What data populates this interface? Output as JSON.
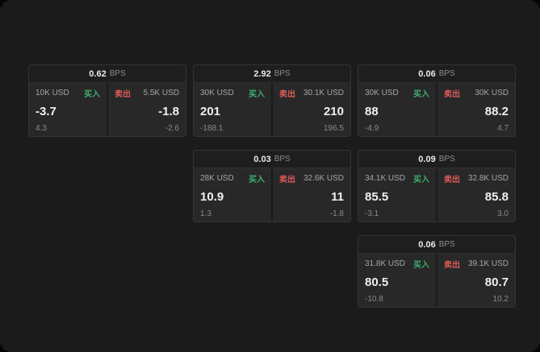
{
  "labels": {
    "buy": "买入",
    "sell": "卖出",
    "bps": "BPS"
  },
  "colors": {
    "buy": "#3fae6f",
    "sell": "#e05a5a",
    "window_bg": "#1b1b1b"
  },
  "cards": [
    {
      "bps": "0.62",
      "buy": {
        "amount": "10K USD",
        "price": "-3.7",
        "sub": "4.3"
      },
      "sell": {
        "amount": "5.5K USD",
        "price": "-1.8",
        "sub": "-2.6"
      }
    },
    {
      "bps": "2.92",
      "buy": {
        "amount": "30K USD",
        "price": "201",
        "sub": "-188.1"
      },
      "sell": {
        "amount": "30.1K USD",
        "price": "210",
        "sub": "196.5"
      }
    },
    {
      "bps": "0.06",
      "buy": {
        "amount": "30K USD",
        "price": "88",
        "sub": "-4.9"
      },
      "sell": {
        "amount": "30K USD",
        "price": "88.2",
        "sub": "4.7"
      }
    },
    {
      "bps": "0.03",
      "buy": {
        "amount": "28K USD",
        "price": "10.9",
        "sub": "1.3"
      },
      "sell": {
        "amount": "32.6K USD",
        "price": "11",
        "sub": "-1.8"
      }
    },
    {
      "bps": "0.09",
      "buy": {
        "amount": "34.1K USD",
        "price": "85.5",
        "sub": "-3.1"
      },
      "sell": {
        "amount": "32.8K USD",
        "price": "85.8",
        "sub": "3.0"
      }
    },
    {
      "bps": "0.06",
      "buy": {
        "amount": "31.8K USD",
        "price": "80.5",
        "sub": "-10.8"
      },
      "sell": {
        "amount": "39.1K USD",
        "price": "80.7",
        "sub": "10.2"
      }
    }
  ]
}
